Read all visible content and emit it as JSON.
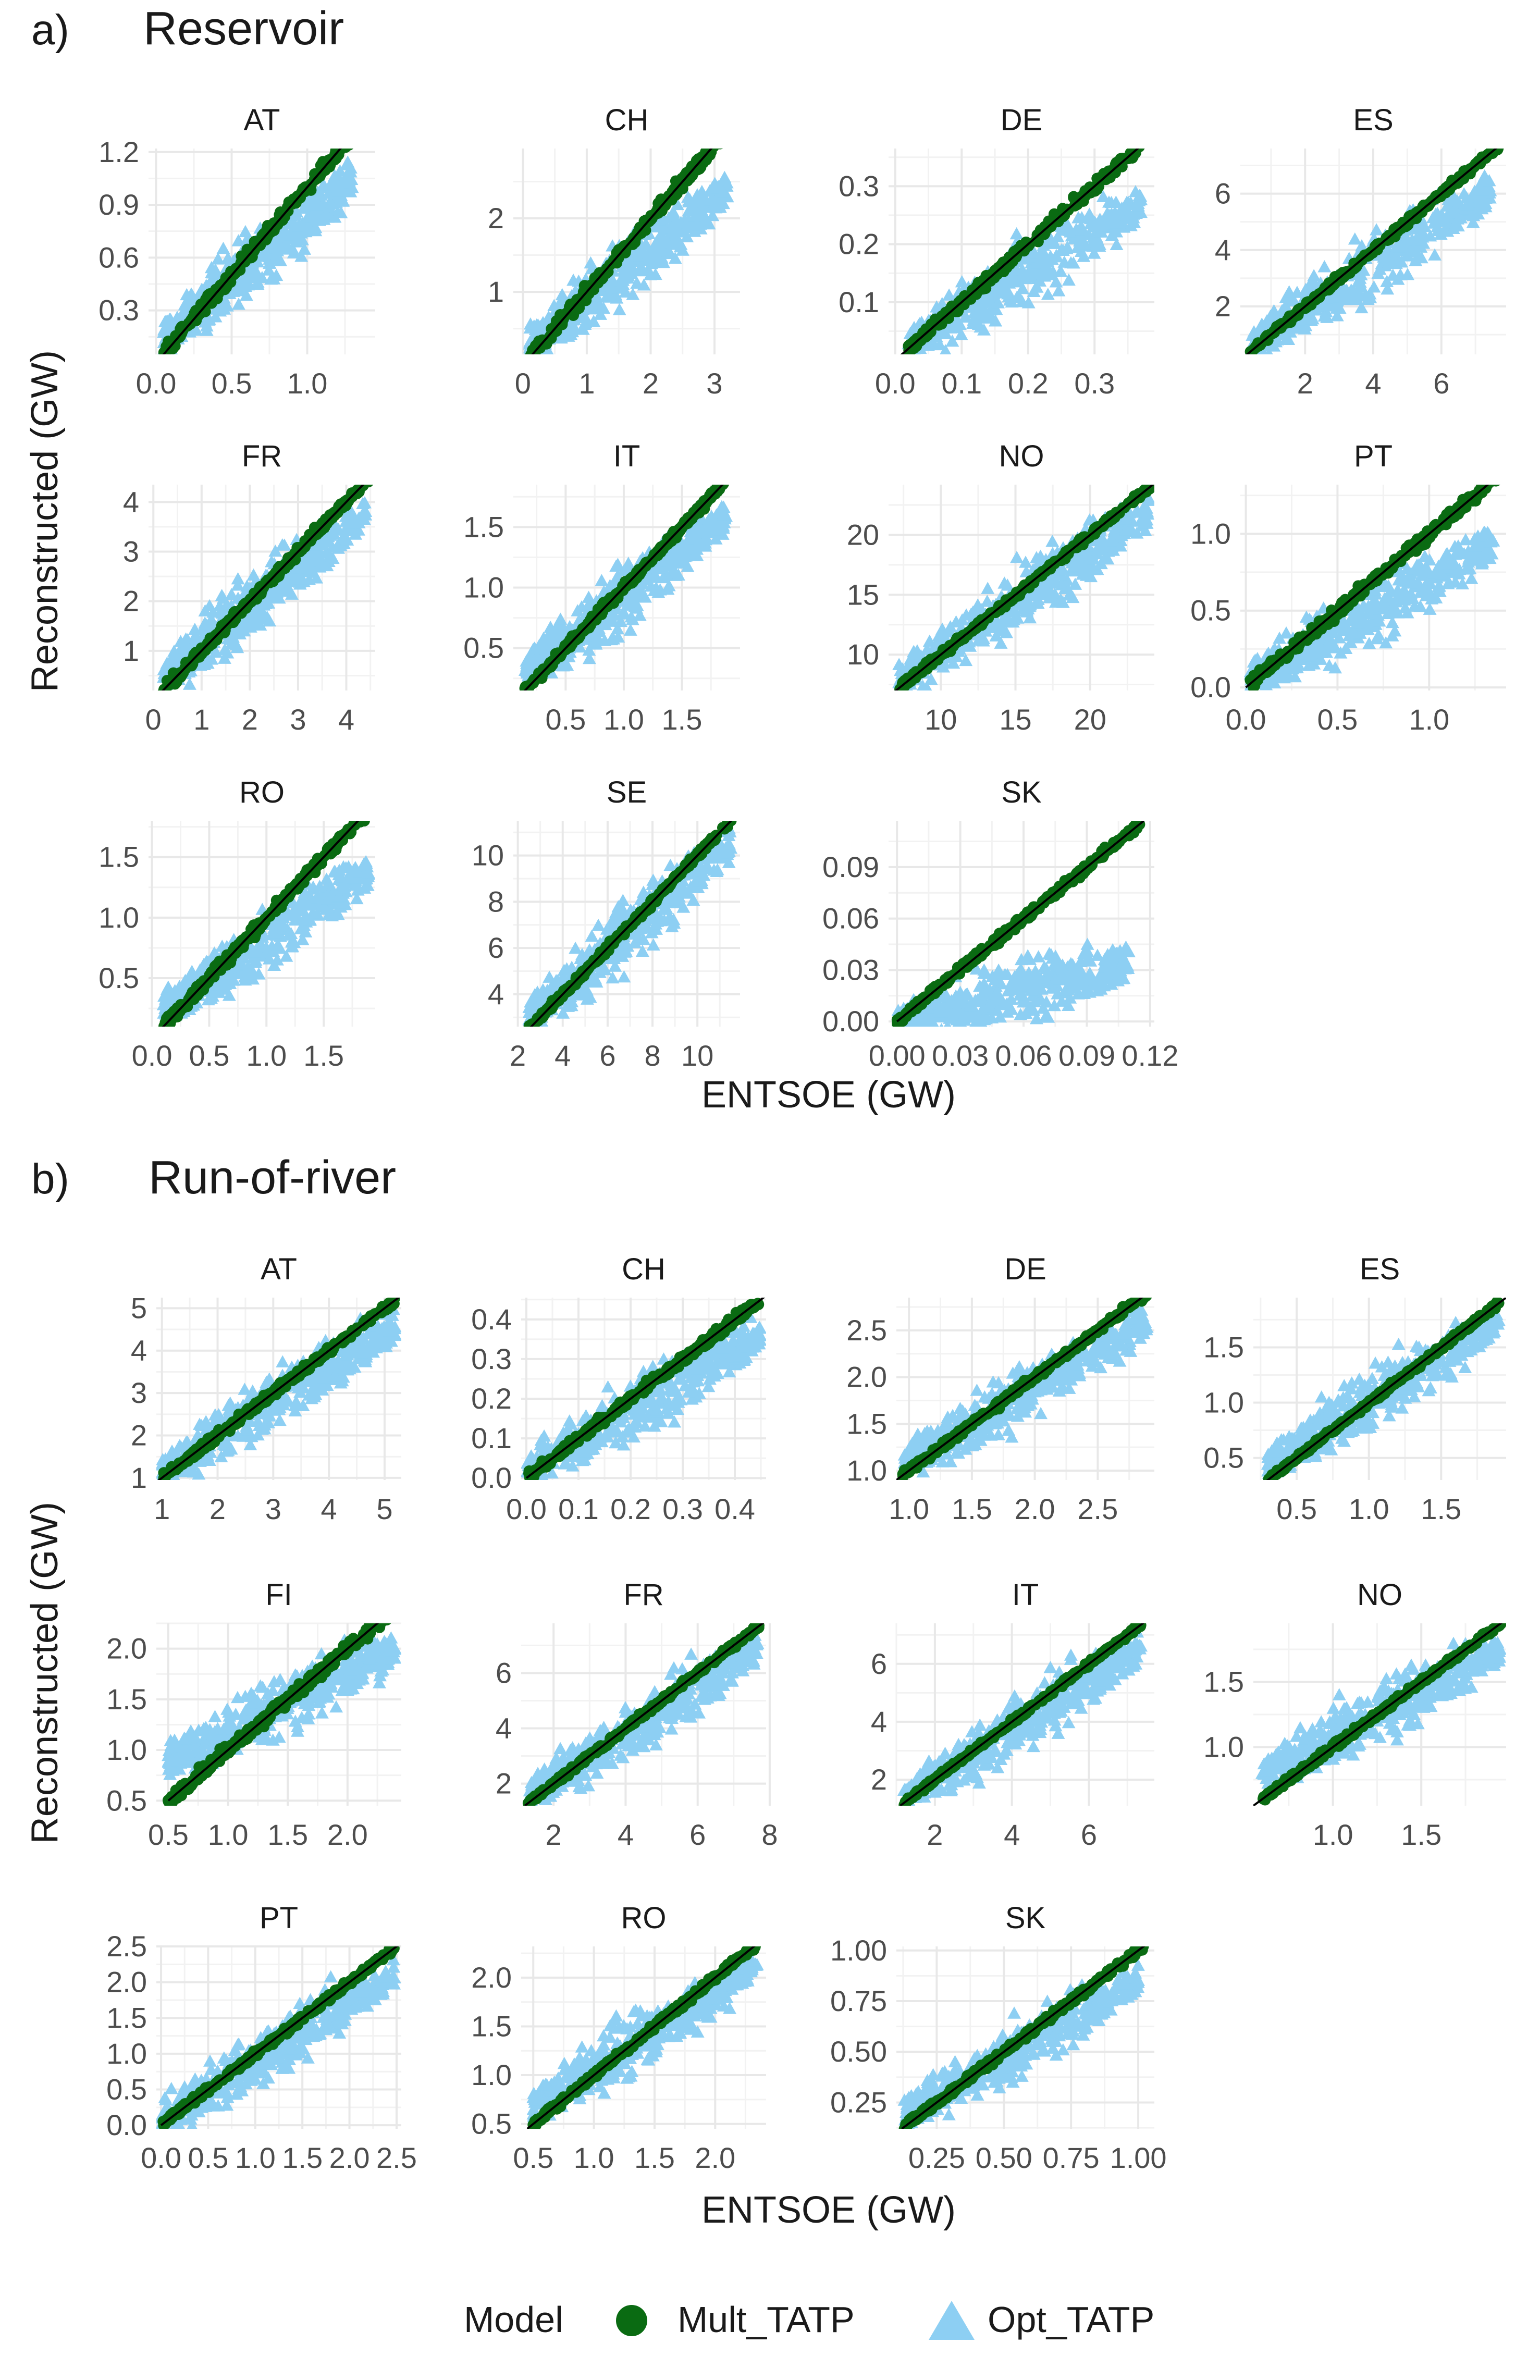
{
  "colors": {
    "mult": "#0a6b12",
    "opt": "#8dcff3",
    "grid": "#e8e8e8",
    "text": "#4d4d4d",
    "title": "#1a1a1a",
    "line": "#000000"
  },
  "sections": [
    {
      "tag": "a)",
      "title": "Reservoir",
      "ylabel": "Reconstructed (GW)",
      "xlabel": "ENTSOE (GW)"
    },
    {
      "tag": "b)",
      "title": "Run-of-river",
      "ylabel": "Reconstructed (GW)",
      "xlabel": "ENTSOE (GW)"
    }
  ],
  "legend": {
    "title": "Model",
    "items": [
      {
        "label": "Mult_TATP",
        "shape": "circle",
        "series": "mult"
      },
      {
        "label": "Opt_TATP",
        "shape": "triangle",
        "series": "opt"
      }
    ]
  },
  "chart_data": [
    {
      "section": 0,
      "type": "scatter",
      "title": "AT",
      "xlim": [
        -0.05,
        1.45
      ],
      "ylim": [
        0.05,
        1.22
      ],
      "xticks": [
        0.0,
        0.5,
        1.0
      ],
      "xtick_labels": [
        "0.0",
        "0.5",
        "1.0"
      ],
      "yticks": [
        0.3,
        0.6,
        0.9,
        1.2
      ],
      "ytick_labels": [
        "0.3",
        "0.6",
        "0.9",
        "1.2"
      ],
      "diag": [
        0.0,
        1.4
      ],
      "mult_range": [
        0.05,
        1.4
      ],
      "mult_spread": 0.03,
      "opt_range": [
        0.05,
        1.3
      ],
      "opt_y": [
        0.15,
        1.05
      ]
    },
    {
      "section": 0,
      "type": "scatter",
      "title": "CH",
      "xlim": [
        -0.15,
        3.4
      ],
      "ylim": [
        0.15,
        2.95
      ],
      "xticks": [
        0,
        1,
        2,
        3
      ],
      "xtick_labels": [
        "0",
        "1",
        "2",
        "3"
      ],
      "yticks": [
        1,
        2
      ],
      "ytick_labels": [
        "1",
        "2"
      ],
      "diag": [
        0.0,
        3.4
      ],
      "mult_range": [
        0.1,
        3.3
      ],
      "mult_spread": 0.07,
      "opt_range": [
        0.1,
        3.2
      ],
      "opt_y": [
        0.3,
        2.4
      ]
    },
    {
      "section": 0,
      "type": "scatter",
      "title": "DE",
      "xlim": [
        -0.01,
        0.39
      ],
      "ylim": [
        0.01,
        0.365
      ],
      "xticks": [
        0.0,
        0.1,
        0.2,
        0.3
      ],
      "xtick_labels": [
        "0.0",
        "0.1",
        "0.2",
        "0.3"
      ],
      "yticks": [
        0.1,
        0.2,
        0.3
      ],
      "ytick_labels": [
        "0.1",
        "0.2",
        "0.3"
      ],
      "diag": [
        0.0,
        0.38
      ],
      "mult_range": [
        0.02,
        0.37
      ],
      "mult_spread": 0.008,
      "opt_range": [
        0.02,
        0.37
      ],
      "opt_y": [
        0.03,
        0.27
      ]
    },
    {
      "section": 0,
      "type": "scatter",
      "title": "ES",
      "xlim": [
        0.1,
        7.9
      ],
      "ylim": [
        0.3,
        7.6
      ],
      "xticks": [
        2,
        4,
        6
      ],
      "xtick_labels": [
        "2",
        "4",
        "6"
      ],
      "yticks": [
        2,
        4,
        6
      ],
      "ytick_labels": [
        "2",
        "4",
        "6"
      ],
      "diag": [
        0.2,
        7.9
      ],
      "mult_range": [
        0.4,
        7.7
      ],
      "mult_spread": 0.1,
      "opt_range": [
        0.4,
        7.5
      ],
      "opt_y": [
        0.6,
        6.2
      ]
    },
    {
      "section": 0,
      "type": "scatter",
      "title": "FR",
      "xlim": [
        -0.1,
        4.6
      ],
      "ylim": [
        0.2,
        4.35
      ],
      "xticks": [
        0,
        1,
        2,
        3,
        4
      ],
      "xtick_labels": [
        "0",
        "1",
        "2",
        "3",
        "4"
      ],
      "yticks": [
        1,
        2,
        3,
        4
      ],
      "ytick_labels": [
        "1",
        "2",
        "3",
        "4"
      ],
      "diag": [
        0.0,
        4.6
      ],
      "mult_range": [
        0.2,
        4.5
      ],
      "mult_spread": 0.08,
      "opt_range": [
        0.2,
        4.4
      ],
      "opt_y": [
        0.5,
        3.8
      ]
    },
    {
      "section": 0,
      "type": "scatter",
      "title": "IT",
      "xlim": [
        0.05,
        2.0
      ],
      "ylim": [
        0.15,
        1.85
      ],
      "xticks": [
        0.5,
        1.0,
        1.5
      ],
      "xtick_labels": [
        "0.5",
        "1.0",
        "1.5"
      ],
      "yticks": [
        0.5,
        1.0,
        1.5
      ],
      "ytick_labels": [
        "0.5",
        "1.0",
        "1.5"
      ],
      "diag": [
        0.1,
        2.0
      ],
      "mult_range": [
        0.15,
        1.9
      ],
      "mult_spread": 0.03,
      "opt_range": [
        0.15,
        1.9
      ],
      "opt_y": [
        0.3,
        1.6
      ]
    },
    {
      "section": 0,
      "type": "scatter",
      "title": "NO",
      "xlim": [
        6.5,
        24.3
      ],
      "ylim": [
        7.0,
        24.2
      ],
      "xticks": [
        10,
        15,
        20
      ],
      "xtick_labels": [
        "10",
        "15",
        "20"
      ],
      "yticks": [
        10,
        15,
        20
      ],
      "ytick_labels": [
        "10",
        "15",
        "20"
      ],
      "diag": [
        6.5,
        24.3
      ],
      "mult_range": [
        7.2,
        24.0
      ],
      "mult_spread": 0.25,
      "opt_range": [
        7.2,
        24.0
      ],
      "opt_y": [
        8.0,
        22.0
      ]
    },
    {
      "section": 0,
      "type": "scatter",
      "title": "PT",
      "xlim": [
        -0.03,
        1.42
      ],
      "ylim": [
        -0.02,
        1.32
      ],
      "xticks": [
        0.0,
        0.5,
        1.0
      ],
      "xtick_labels": [
        "0.0",
        "0.5",
        "1.0"
      ],
      "yticks": [
        0.0,
        0.5,
        1.0
      ],
      "ytick_labels": [
        "0.0",
        "0.5",
        "1.0"
      ],
      "diag": [
        0.0,
        1.42
      ],
      "mult_range": [
        0.02,
        1.38
      ],
      "mult_spread": 0.03,
      "opt_range": [
        0.02,
        1.35
      ],
      "opt_y": [
        0.05,
        0.95
      ]
    },
    {
      "section": 0,
      "type": "scatter",
      "title": "RO",
      "xlim": [
        -0.03,
        1.95
      ],
      "ylim": [
        0.1,
        1.8
      ],
      "xticks": [
        0.0,
        0.5,
        1.0,
        1.5
      ],
      "xtick_labels": [
        "0.0",
        "0.5",
        "1.0",
        "1.5"
      ],
      "yticks": [
        0.5,
        1.0,
        1.5
      ],
      "ytick_labels": [
        "0.5",
        "1.0",
        "1.5"
      ],
      "diag": [
        0.05,
        1.95
      ],
      "mult_range": [
        0.1,
        1.9
      ],
      "mult_spread": 0.04,
      "opt_range": [
        0.1,
        1.9
      ],
      "opt_y": [
        0.25,
        1.4
      ]
    },
    {
      "section": 0,
      "type": "scatter",
      "title": "SE",
      "xlim": [
        1.8,
        11.9
      ],
      "ylim": [
        2.6,
        11.5
      ],
      "xticks": [
        2,
        4,
        6,
        8,
        10
      ],
      "xtick_labels": [
        "2",
        "4",
        "6",
        "8",
        "10"
      ],
      "yticks": [
        4,
        6,
        8,
        10
      ],
      "ytick_labels": [
        "4",
        "6",
        "8",
        "10"
      ],
      "diag": [
        2.2,
        11.9
      ],
      "mult_range": [
        2.5,
        11.5
      ],
      "mult_spread": 0.12,
      "opt_range": [
        2.5,
        11.5
      ],
      "opt_y": [
        3.0,
        10.5
      ]
    },
    {
      "section": 0,
      "type": "scatter",
      "title": "SK",
      "xlim": [
        -0.004,
        0.122
      ],
      "ylim": [
        -0.003,
        0.117
      ],
      "xticks": [
        0.0,
        0.03,
        0.06,
        0.09,
        0.12
      ],
      "xtick_labels": [
        "0.00",
        "0.03",
        "0.06",
        "0.09",
        "0.12"
      ],
      "yticks": [
        0.0,
        0.03,
        0.06,
        0.09
      ],
      "ytick_labels": [
        "0.00",
        "0.03",
        "0.06",
        "0.09"
      ],
      "diag": [
        0.0,
        0.117
      ],
      "mult_range": [
        0.0,
        0.115
      ],
      "mult_spread": 0.002,
      "opt_range": [
        0.0,
        0.11
      ],
      "opt_y": [
        0.0,
        0.035
      ]
    },
    {
      "section": 1,
      "type": "scatter",
      "title": "AT",
      "xlim": [
        0.9,
        5.3
      ],
      "ylim": [
        0.95,
        5.25
      ],
      "xticks": [
        1,
        2,
        3,
        4,
        5
      ],
      "xtick_labels": [
        "1",
        "2",
        "3",
        "4",
        "5"
      ],
      "yticks": [
        1,
        2,
        3,
        4,
        5
      ],
      "ytick_labels": [
        "1",
        "2",
        "3",
        "4",
        "5"
      ],
      "diag": [
        0.9,
        5.3
      ],
      "mult_range": [
        1.0,
        5.2
      ],
      "mult_spread": 0.08,
      "opt_range": [
        1.0,
        5.2
      ],
      "opt_y": [
        1.2,
        4.6
      ]
    },
    {
      "section": 1,
      "type": "scatter",
      "title": "CH",
      "xlim": [
        -0.01,
        0.46
      ],
      "ylim": [
        -0.005,
        0.455
      ],
      "xticks": [
        0.0,
        0.1,
        0.2,
        0.3,
        0.4
      ],
      "xtick_labels": [
        "0.0",
        "0.1",
        "0.2",
        "0.3",
        "0.4"
      ],
      "yticks": [
        0.0,
        0.1,
        0.2,
        0.3,
        0.4
      ],
      "ytick_labels": [
        "0.0",
        "0.1",
        "0.2",
        "0.3",
        "0.4"
      ],
      "diag": [
        0.0,
        0.46
      ],
      "mult_range": [
        0.0,
        0.45
      ],
      "mult_spread": 0.01,
      "opt_range": [
        0.0,
        0.45
      ],
      "opt_y": [
        0.02,
        0.36
      ]
    },
    {
      "section": 1,
      "type": "scatter",
      "title": "DE",
      "xlim": [
        0.9,
        2.95
      ],
      "ylim": [
        0.9,
        2.85
      ],
      "xticks": [
        1.0,
        1.5,
        2.0,
        2.5
      ],
      "xtick_labels": [
        "1.0",
        "1.5",
        "2.0",
        "2.5"
      ],
      "yticks": [
        1.0,
        1.5,
        2.0,
        2.5
      ],
      "ytick_labels": [
        "1.0",
        "1.5",
        "2.0",
        "2.5"
      ],
      "diag": [
        0.9,
        2.95
      ],
      "mult_range": [
        0.95,
        2.9
      ],
      "mult_spread": 0.03,
      "opt_range": [
        0.95,
        2.9
      ],
      "opt_y": [
        1.1,
        2.6
      ]
    },
    {
      "section": 1,
      "type": "scatter",
      "title": "ES",
      "xlim": [
        0.2,
        1.95
      ],
      "ylim": [
        0.3,
        1.95
      ],
      "xticks": [
        0.5,
        1.0,
        1.5
      ],
      "xtick_labels": [
        "0.5",
        "1.0",
        "1.5"
      ],
      "yticks": [
        0.5,
        1.0,
        1.5
      ],
      "ytick_labels": [
        "0.5",
        "1.0",
        "1.5"
      ],
      "diag": [
        0.25,
        1.95
      ],
      "mult_range": [
        0.3,
        1.9
      ],
      "mult_spread": 0.02,
      "opt_range": [
        0.3,
        1.9
      ],
      "opt_y": [
        0.45,
        1.75
      ]
    },
    {
      "section": 1,
      "type": "scatter",
      "title": "FI",
      "xlim": [
        0.4,
        2.45
      ],
      "ylim": [
        0.45,
        2.25
      ],
      "xticks": [
        0.5,
        1.0,
        1.5,
        2.0
      ],
      "xtick_labels": [
        "0.5",
        "1.0",
        "1.5",
        "2.0"
      ],
      "yticks": [
        0.5,
        1.0,
        1.5,
        2.0
      ],
      "ytick_labels": [
        "0.5",
        "1.0",
        "1.5",
        "2.0"
      ],
      "diag": [
        0.5,
        2.45
      ],
      "mult_range": [
        0.5,
        2.4
      ],
      "mult_spread": 0.05,
      "opt_range": [
        0.5,
        2.4
      ],
      "opt_y": [
        0.9,
        2.0
      ]
    },
    {
      "section": 1,
      "type": "scatter",
      "title": "FR",
      "xlim": [
        1.1,
        7.9
      ],
      "ylim": [
        1.2,
        7.8
      ],
      "xticks": [
        2,
        4,
        6,
        8
      ],
      "xtick_labels": [
        "2",
        "4",
        "6",
        "8"
      ],
      "yticks": [
        2,
        4,
        6
      ],
      "ytick_labels": [
        "2",
        "4",
        "6"
      ],
      "diag": [
        1.2,
        7.9
      ],
      "mult_range": [
        1.3,
        7.7
      ],
      "mult_spread": 0.08,
      "opt_range": [
        1.3,
        7.7
      ],
      "opt_y": [
        1.6,
        7.0
      ]
    },
    {
      "section": 1,
      "type": "scatter",
      "title": "IT",
      "xlim": [
        1.0,
        7.7
      ],
      "ylim": [
        1.1,
        7.4
      ],
      "xticks": [
        2,
        4,
        6
      ],
      "xtick_labels": [
        "2",
        "4",
        "6"
      ],
      "yticks": [
        2,
        4,
        6
      ],
      "ytick_labels": [
        "2",
        "4",
        "6"
      ],
      "diag": [
        1.1,
        7.7
      ],
      "mult_range": [
        1.2,
        7.4
      ],
      "mult_spread": 0.07,
      "opt_range": [
        1.2,
        7.4
      ],
      "opt_y": [
        1.4,
        6.6
      ]
    },
    {
      "section": 1,
      "type": "scatter",
      "title": "NO",
      "xlim": [
        0.55,
        1.98
      ],
      "ylim": [
        0.55,
        1.95
      ],
      "xticks": [
        1.0,
        1.5
      ],
      "xtick_labels": [
        "1.0",
        "1.5"
      ],
      "yticks": [
        1.0,
        1.5
      ],
      "ytick_labels": [
        "1.0",
        "1.5"
      ],
      "diag": [
        0.55,
        1.98
      ],
      "mult_range": [
        0.6,
        1.95
      ],
      "mult_spread": 0.02,
      "opt_range": [
        0.6,
        1.95
      ],
      "opt_y": [
        0.8,
        1.75
      ]
    },
    {
      "section": 1,
      "type": "scatter",
      "title": "PT",
      "xlim": [
        -0.05,
        2.55
      ],
      "ylim": [
        -0.05,
        2.5
      ],
      "xticks": [
        0.0,
        0.5,
        1.0,
        1.5,
        2.0,
        2.5
      ],
      "xtick_labels": [
        "0.0",
        "0.5",
        "1.0",
        "1.5",
        "2.0",
        "2.5"
      ],
      "yticks": [
        0.0,
        0.5,
        1.0,
        1.5,
        2.0,
        2.5
      ],
      "ytick_labels": [
        "0.0",
        "0.5",
        "1.0",
        "1.5",
        "2.0",
        "2.5"
      ],
      "diag": [
        0.0,
        2.55
      ],
      "mult_range": [
        0.0,
        2.5
      ],
      "mult_spread": 0.04,
      "opt_range": [
        0.0,
        2.5
      ],
      "opt_y": [
        0.1,
        2.1
      ]
    },
    {
      "section": 1,
      "type": "scatter",
      "title": "RO",
      "xlim": [
        0.4,
        2.42
      ],
      "ylim": [
        0.45,
        2.32
      ],
      "xticks": [
        0.5,
        1.0,
        1.5,
        2.0
      ],
      "xtick_labels": [
        "0.5",
        "1.0",
        "1.5",
        "2.0"
      ],
      "yticks": [
        0.5,
        1.0,
        1.5,
        2.0
      ],
      "ytick_labels": [
        "0.5",
        "1.0",
        "1.5",
        "2.0"
      ],
      "diag": [
        0.45,
        2.42
      ],
      "mult_range": [
        0.5,
        2.35
      ],
      "mult_spread": 0.03,
      "opt_range": [
        0.5,
        2.35
      ],
      "opt_y": [
        0.7,
        2.1
      ]
    },
    {
      "section": 1,
      "type": "scatter",
      "title": "SK",
      "xlim": [
        0.1,
        1.06
      ],
      "ylim": [
        0.12,
        1.02
      ],
      "xticks": [
        0.25,
        0.5,
        0.75,
        1.0
      ],
      "xtick_labels": [
        "0.25",
        "0.50",
        "0.75",
        "1.00"
      ],
      "yticks": [
        0.25,
        0.5,
        0.75,
        1.0
      ],
      "ytick_labels": [
        "0.25",
        "0.50",
        "0.75",
        "1.00"
      ],
      "diag": [
        0.12,
        1.06
      ],
      "mult_range": [
        0.13,
        1.02
      ],
      "mult_spread": 0.015,
      "opt_range": [
        0.13,
        1.0
      ],
      "opt_y": [
        0.2,
        0.85
      ]
    }
  ]
}
